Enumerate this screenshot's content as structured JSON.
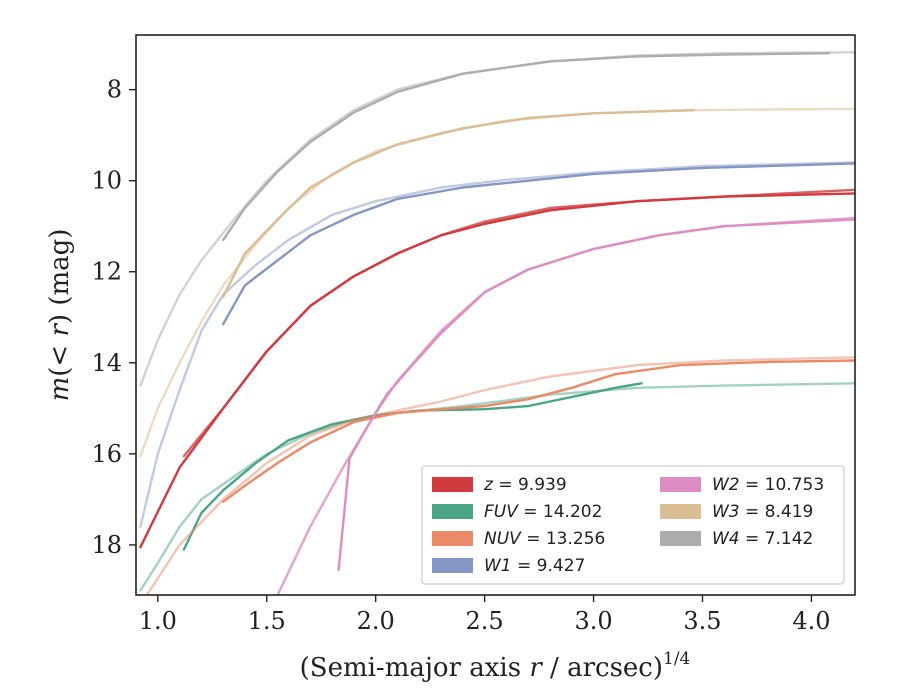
{
  "chart_data": {
    "type": "line",
    "title": "",
    "xlabel_main": "(Semi-major axis ",
    "xlabel_var": "r",
    "xlabel_tail": " / arcsec)",
    "xlabel_exp": "1/4",
    "ylabel_pre": "m(< ",
    "ylabel_var": "r",
    "ylabel_post": ") (mag)",
    "xlim": [
      0.9,
      4.2
    ],
    "ylim": [
      19.1,
      6.8
    ],
    "y_inverted": true,
    "x_ticks": [
      1.0,
      1.5,
      2.0,
      2.5,
      3.0,
      3.5,
      4.0
    ],
    "x_tick_labels": [
      "1.0",
      "1.5",
      "2.0",
      "2.5",
      "3.0",
      "3.5",
      "4.0"
    ],
    "y_ticks": [
      8,
      10,
      12,
      14,
      16,
      18
    ],
    "y_tick_labels": [
      "8",
      "10",
      "12",
      "14",
      "16",
      "18"
    ],
    "grid": false,
    "legend_position": "lower-right",
    "legend_columns": 2,
    "series": [
      {
        "name": "z",
        "label_value": "= 9.939",
        "color": "#d13b3f",
        "curves": [
          {
            "alpha": 1.0,
            "points": [
              [
                0.92,
                18.05
              ],
              [
                1.1,
                16.3
              ],
              [
                1.3,
                15.0
              ],
              [
                1.5,
                13.75
              ],
              [
                1.7,
                12.75
              ],
              [
                1.9,
                12.1
              ],
              [
                2.1,
                11.6
              ],
              [
                2.3,
                11.2
              ],
              [
                2.5,
                10.95
              ],
              [
                2.8,
                10.65
              ],
              [
                3.2,
                10.45
              ],
              [
                3.6,
                10.35
              ],
              [
                4.2,
                10.28
              ]
            ]
          },
          {
            "alpha": 0.8,
            "points": [
              [
                1.12,
                16.05
              ],
              [
                1.3,
                15.0
              ],
              [
                1.5,
                13.75
              ],
              [
                1.7,
                12.75
              ],
              [
                1.9,
                12.1
              ],
              [
                2.1,
                11.6
              ],
              [
                2.3,
                11.2
              ],
              [
                2.5,
                10.9
              ],
              [
                2.8,
                10.6
              ],
              [
                3.2,
                10.45
              ],
              [
                3.6,
                10.35
              ],
              [
                4.2,
                10.2
              ]
            ]
          }
        ]
      },
      {
        "name": "FUV",
        "label_value": "= 14.202",
        "color": "#4aa586",
        "curves": [
          {
            "alpha": 0.5,
            "points": [
              [
                0.92,
                19.0
              ],
              [
                1.0,
                18.4
              ],
              [
                1.1,
                17.6
              ],
              [
                1.2,
                17.0
              ],
              [
                1.35,
                16.5
              ],
              [
                1.5,
                16.0
              ],
              [
                1.7,
                15.55
              ],
              [
                1.9,
                15.25
              ],
              [
                2.1,
                15.1
              ],
              [
                2.4,
                14.95
              ],
              [
                2.8,
                14.7
              ],
              [
                3.2,
                14.55
              ],
              [
                3.6,
                14.5
              ],
              [
                4.2,
                14.45
              ]
            ]
          },
          {
            "alpha": 1.0,
            "points": [
              [
                1.12,
                18.1
              ],
              [
                1.2,
                17.3
              ],
              [
                1.3,
                16.8
              ],
              [
                1.45,
                16.2
              ],
              [
                1.6,
                15.7
              ],
              [
                1.8,
                15.35
              ],
              [
                2.0,
                15.15
              ],
              [
                2.2,
                15.05
              ],
              [
                2.5,
                15.02
              ],
              [
                2.7,
                14.95
              ],
              [
                2.8,
                14.85
              ],
              [
                2.95,
                14.7
              ],
              [
                3.1,
                14.55
              ],
              [
                3.22,
                14.45
              ]
            ]
          }
        ]
      },
      {
        "name": "NUV",
        "label_value": "= 13.256",
        "color": "#ea8a66",
        "curves": [
          {
            "alpha": 0.5,
            "points": [
              [
                0.95,
                19.1
              ],
              [
                1.1,
                18.0
              ],
              [
                1.3,
                17.0
              ],
              [
                1.5,
                16.2
              ],
              [
                1.7,
                15.6
              ],
              [
                1.9,
                15.25
              ],
              [
                2.1,
                15.05
              ],
              [
                2.3,
                14.85
              ],
              [
                2.5,
                14.6
              ],
              [
                2.8,
                14.3
              ],
              [
                3.2,
                14.05
              ],
              [
                3.6,
                13.95
              ],
              [
                4.2,
                13.88
              ]
            ]
          },
          {
            "alpha": 1.0,
            "points": [
              [
                1.3,
                17.05
              ],
              [
                1.4,
                16.7
              ],
              [
                1.55,
                16.2
              ],
              [
                1.7,
                15.75
              ],
              [
                1.9,
                15.3
              ],
              [
                2.1,
                15.1
              ],
              [
                2.3,
                15.02
              ],
              [
                2.5,
                14.95
              ],
              [
                2.7,
                14.8
              ],
              [
                2.9,
                14.55
              ],
              [
                3.1,
                14.25
              ],
              [
                3.4,
                14.05
              ],
              [
                3.8,
                13.98
              ],
              [
                4.2,
                13.95
              ]
            ]
          }
        ]
      },
      {
        "name": "W1",
        "label_value": "= 9.427",
        "color": "#8496c4",
        "curves": [
          {
            "alpha": 0.5,
            "points": [
              [
                0.92,
                17.6
              ],
              [
                1.0,
                16.0
              ],
              [
                1.1,
                14.6
              ],
              [
                1.2,
                13.3
              ],
              [
                1.3,
                12.5
              ],
              [
                1.45,
                11.85
              ],
              [
                1.6,
                11.3
              ],
              [
                1.8,
                10.75
              ],
              [
                2.0,
                10.45
              ],
              [
                2.3,
                10.15
              ],
              [
                2.6,
                9.98
              ],
              [
                3.0,
                9.82
              ],
              [
                3.5,
                9.68
              ],
              [
                4.2,
                9.6
              ]
            ]
          },
          {
            "alpha": 1.0,
            "points": [
              [
                1.3,
                13.15
              ],
              [
                1.4,
                12.3
              ],
              [
                1.55,
                11.75
              ],
              [
                1.7,
                11.2
              ],
              [
                1.9,
                10.75
              ],
              [
                2.1,
                10.4
              ],
              [
                2.4,
                10.15
              ],
              [
                2.7,
                10.0
              ],
              [
                3.0,
                9.85
              ],
              [
                3.5,
                9.72
              ],
              [
                4.2,
                9.62
              ]
            ]
          }
        ]
      },
      {
        "name": "W2",
        "label_value": "= 10.753",
        "color": "#dd8dc4",
        "curves": [
          {
            "alpha": 0.8,
            "points": [
              [
                1.55,
                19.1
              ],
              [
                1.7,
                17.6
              ],
              [
                1.85,
                16.3
              ],
              [
                2.0,
                15.1
              ],
              [
                2.1,
                14.4
              ],
              [
                2.3,
                13.3
              ],
              [
                2.5,
                12.45
              ],
              [
                2.7,
                11.95
              ],
              [
                3.0,
                11.5
              ],
              [
                3.3,
                11.2
              ],
              [
                3.6,
                11.0
              ],
              [
                4.2,
                10.82
              ]
            ]
          },
          {
            "alpha": 1.0,
            "points": [
              [
                1.83,
                18.55
              ],
              [
                1.88,
                16.1
              ],
              [
                1.95,
                15.5
              ],
              [
                2.05,
                14.7
              ],
              [
                2.15,
                14.15
              ],
              [
                2.3,
                13.35
              ],
              [
                2.5,
                12.45
              ],
              [
                2.7,
                11.95
              ],
              [
                3.0,
                11.5
              ],
              [
                3.3,
                11.2
              ],
              [
                3.6,
                11.0
              ],
              [
                4.2,
                10.85
              ]
            ]
          }
        ]
      },
      {
        "name": "W3",
        "label_value": "= 8.419",
        "color": "#dcbc92",
        "curves": [
          {
            "alpha": 0.55,
            "points": [
              [
                0.92,
                16.05
              ],
              [
                1.0,
                15.0
              ],
              [
                1.1,
                14.0
              ],
              [
                1.2,
                13.1
              ],
              [
                1.3,
                12.3
              ],
              [
                1.45,
                11.4
              ],
              [
                1.6,
                10.6
              ],
              [
                1.8,
                9.85
              ],
              [
                2.0,
                9.35
              ],
              [
                2.3,
                8.95
              ],
              [
                2.6,
                8.68
              ],
              [
                3.0,
                8.52
              ],
              [
                3.5,
                8.45
              ],
              [
                4.2,
                8.42
              ]
            ]
          },
          {
            "alpha": 1.0,
            "points": [
              [
                1.3,
                12.55
              ],
              [
                1.4,
                11.6
              ],
              [
                1.55,
                10.85
              ],
              [
                1.7,
                10.15
              ],
              [
                1.9,
                9.6
              ],
              [
                2.1,
                9.2
              ],
              [
                2.4,
                8.85
              ],
              [
                2.7,
                8.62
              ],
              [
                3.0,
                8.52
              ],
              [
                3.46,
                8.45
              ]
            ]
          }
        ]
      },
      {
        "name": "W4",
        "label_value": "= 7.142",
        "color": "#adadad",
        "curves": [
          {
            "alpha": 0.55,
            "points": [
              [
                0.92,
                14.5
              ],
              [
                1.0,
                13.5
              ],
              [
                1.1,
                12.5
              ],
              [
                1.2,
                11.75
              ],
              [
                1.35,
                10.85
              ],
              [
                1.5,
                10.0
              ],
              [
                1.7,
                9.1
              ],
              [
                1.9,
                8.45
              ],
              [
                2.1,
                8.0
              ],
              [
                2.4,
                7.65
              ],
              [
                2.8,
                7.38
              ],
              [
                3.2,
                7.25
              ],
              [
                3.6,
                7.2
              ],
              [
                4.2,
                7.18
              ]
            ]
          },
          {
            "alpha": 1.0,
            "points": [
              [
                1.3,
                11.3
              ],
              [
                1.4,
                10.6
              ],
              [
                1.55,
                9.8
              ],
              [
                1.7,
                9.15
              ],
              [
                1.9,
                8.5
              ],
              [
                2.1,
                8.05
              ],
              [
                2.4,
                7.65
              ],
              [
                2.8,
                7.38
              ],
              [
                3.2,
                7.27
              ],
              [
                3.6,
                7.23
              ],
              [
                4.08,
                7.2
              ]
            ]
          }
        ]
      }
    ]
  }
}
